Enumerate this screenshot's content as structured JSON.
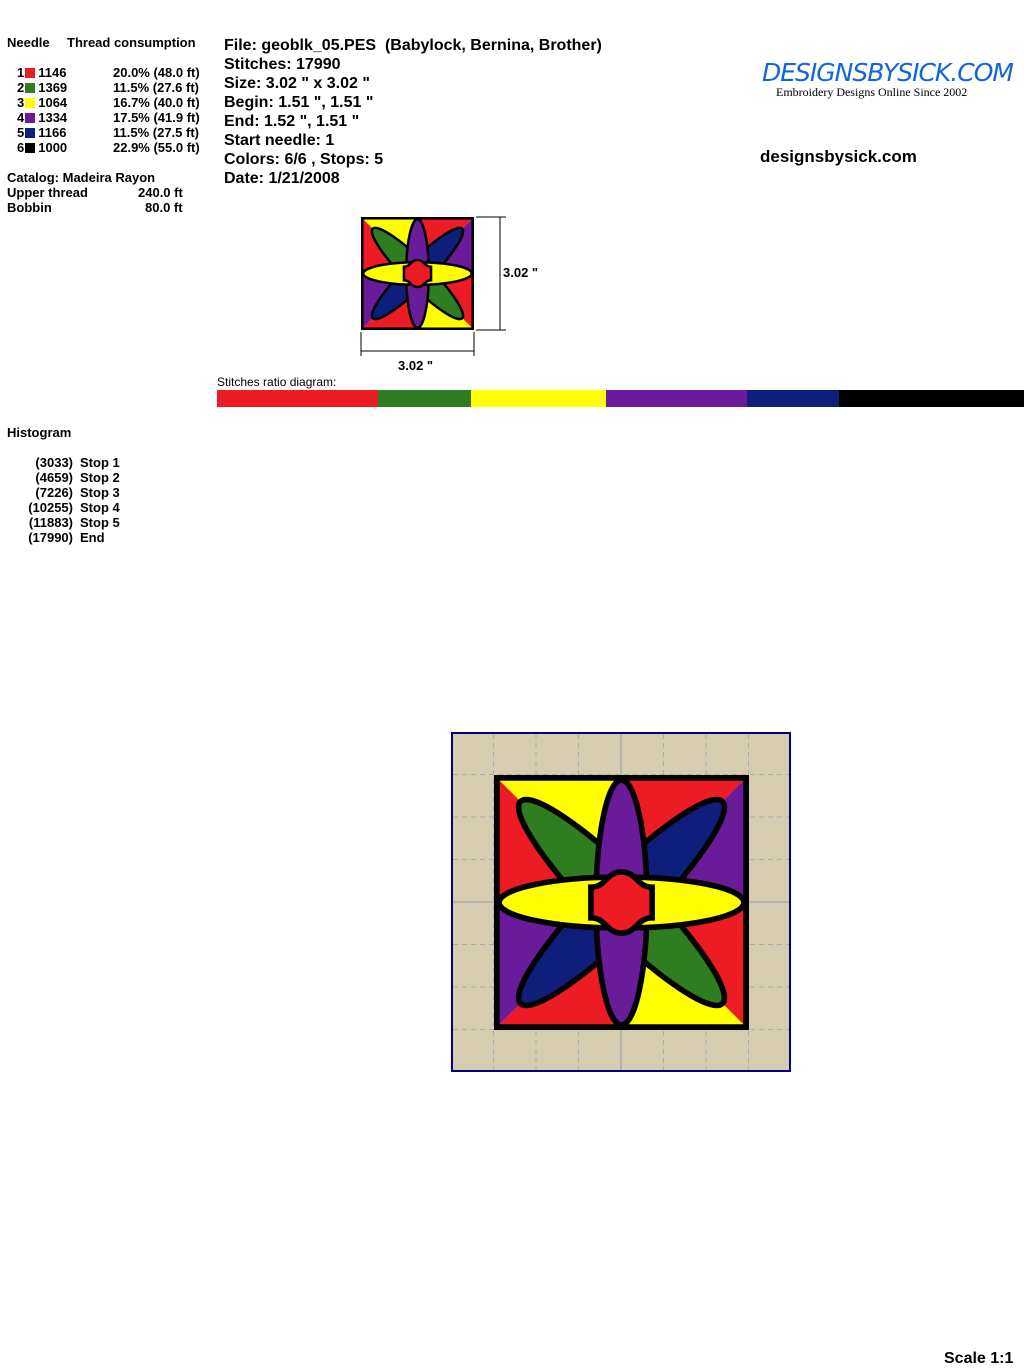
{
  "thread_table": {
    "needle_header": "Needle",
    "consumption_header": "Thread consumption",
    "rows": [
      {
        "needle": "1",
        "color": "#ed1c24",
        "code": "1146",
        "percent": 20.0,
        "consumption": "20.0% (48.0 ft)"
      },
      {
        "needle": "2",
        "color": "#2e7d20",
        "code": "1369",
        "percent": 11.5,
        "consumption": "11.5% (27.6 ft)"
      },
      {
        "needle": "3",
        "color": "#ffff00",
        "code": "1064",
        "percent": 16.7,
        "consumption": "16.7% (40.0 ft)"
      },
      {
        "needle": "4",
        "color": "#6a1b9a",
        "code": "1334",
        "percent": 17.5,
        "consumption": "17.5% (41.9 ft)"
      },
      {
        "needle": "5",
        "color": "#0d1f7a",
        "code": "1166",
        "percent": 11.5,
        "consumption": "11.5% (27.5 ft)"
      },
      {
        "needle": "6",
        "color": "#000000",
        "code": "1000",
        "percent": 22.9,
        "consumption": "22.9% (55.0 ft)"
      }
    ],
    "catalog": "Catalog: Madeira Rayon",
    "upper_label": "Upper thread",
    "upper_value": "240.0 ft",
    "bobbin_label": "Bobbin",
    "bobbin_value": "80.0 ft"
  },
  "info": {
    "file": "File: geoblk_05.PES  (Babylock, Bernina, Brother)",
    "stitches": "Stitches: 17990",
    "size": "Size: 3.02 \" x 3.02 \"",
    "begin": "Begin: 1.51 \", 1.51 \"",
    "end": "End: 1.52 \", 1.51 \"",
    "start_needle": "Start needle: 1",
    "colors": "Colors: 6/6 , Stops: 5",
    "date": "Date: 1/21/2008"
  },
  "logo": {
    "title": "DESIGNSBYSICK.COM",
    "tagline": "Embroidery Designs Online Since 2002",
    "site": "designsbysick.com"
  },
  "dimensions": {
    "height": "3.02 \"",
    "width": "3.02 \""
  },
  "ratio_label": "Stitches ratio diagram:",
  "histogram": {
    "title": "Histogram",
    "items": [
      {
        "count": "(3033)",
        "label": "Stop 1"
      },
      {
        "count": "(4659)",
        "label": "Stop 2"
      },
      {
        "count": "(7226)",
        "label": "Stop 3"
      },
      {
        "count": "(10255)",
        "label": "Stop 4"
      },
      {
        "count": "(11883)",
        "label": "Stop 5"
      },
      {
        "count": "(17990)",
        "label": "End"
      }
    ]
  },
  "scale": "Scale 1:1",
  "colors": {
    "hoop_bg": "#d6ccb0",
    "frame": "#000080"
  }
}
